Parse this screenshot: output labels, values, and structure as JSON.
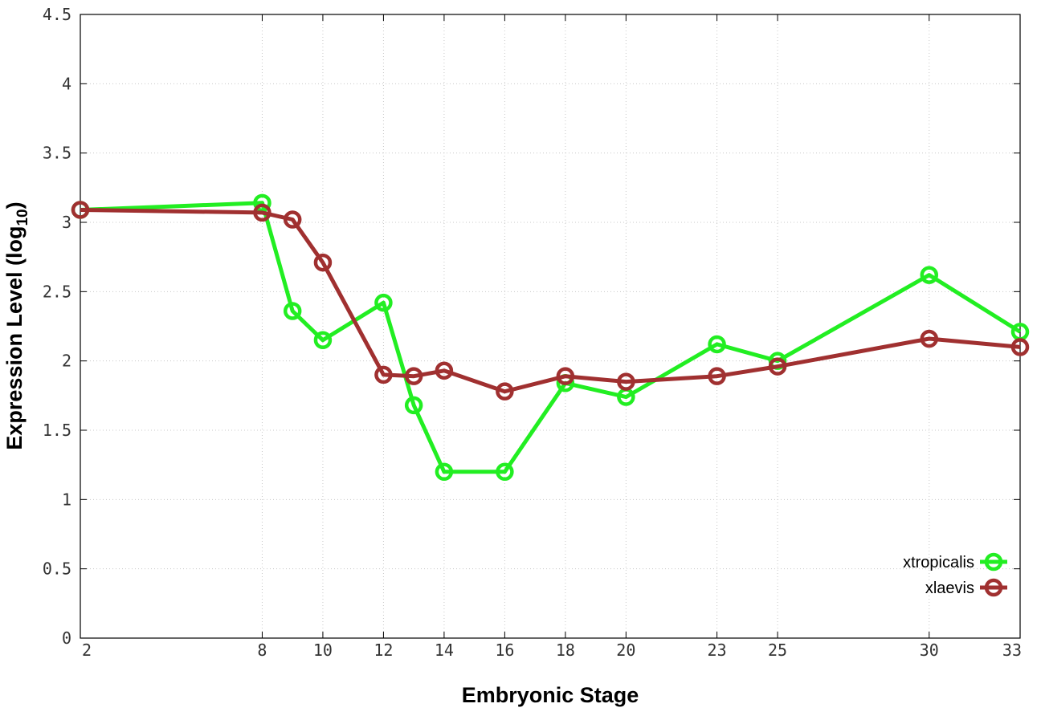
{
  "chart_data": {
    "type": "line",
    "xlabel": "Embryonic Stage",
    "ylabel_main": "Expression Level (log",
    "ylabel_sub": "10",
    "ylabel_close": ")",
    "xlim": [
      2,
      33
    ],
    "ylim": [
      0,
      4.5
    ],
    "x_ticks": [
      2,
      8,
      10,
      12,
      14,
      16,
      18,
      20,
      23,
      25,
      30,
      33
    ],
    "y_ticks": [
      0,
      0.5,
      1,
      1.5,
      2,
      2.5,
      3,
      3.5,
      4,
      4.5
    ],
    "y_tick_labels": [
      "0",
      "0.5",
      "1",
      "1.5",
      "2",
      "2.5",
      "3",
      "3.5",
      "4",
      "4.5"
    ],
    "x": [
      2,
      8,
      9,
      10,
      12,
      13,
      14,
      16,
      18,
      20,
      23,
      25,
      30,
      33
    ],
    "grid": true,
    "legend_position": "bottom-right",
    "series": [
      {
        "name": "xtropicalis",
        "color": "#22ee22",
        "values": [
          3.09,
          3.14,
          2.36,
          2.15,
          2.42,
          1.68,
          1.2,
          1.2,
          1.84,
          1.74,
          2.12,
          2.0,
          2.62,
          2.21
        ]
      },
      {
        "name": "xlaevis",
        "color": "#a03030",
        "values": [
          3.09,
          3.07,
          3.02,
          2.71,
          1.9,
          1.89,
          1.93,
          1.78,
          1.89,
          1.85,
          1.89,
          1.96,
          2.16,
          2.1
        ]
      }
    ]
  }
}
